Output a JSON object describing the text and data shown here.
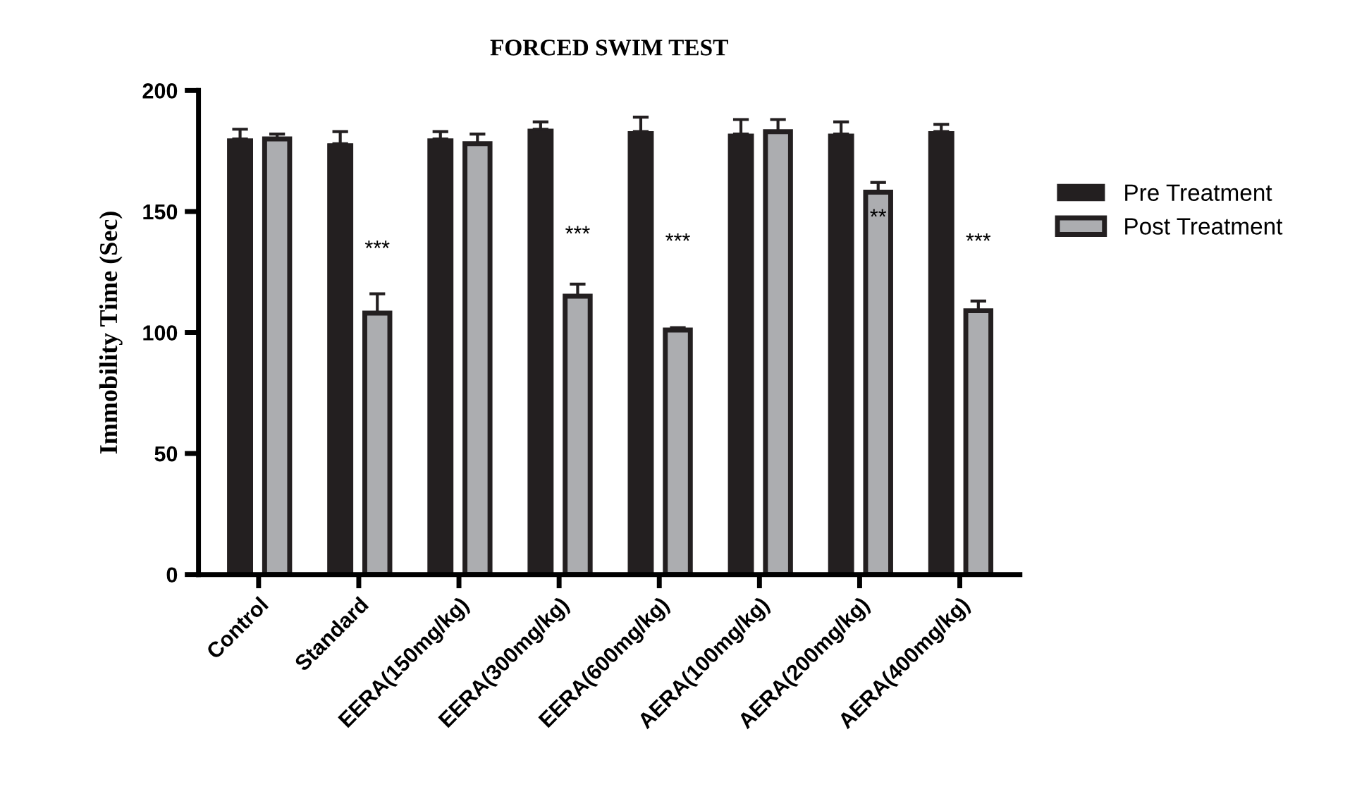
{
  "chart_data": {
    "type": "bar",
    "title": "FORCED SWIM TEST",
    "ylabel": "Immobility Time (Sec)",
    "categories": [
      "Control",
      "Standard",
      "EERA(150mg/kg)",
      "EERA(300mg/kg)",
      "EERA(600mg/kg)",
      "AERA(100mg/kg)",
      "AERA(200mg/kg)",
      "AERA(400mg/kg)"
    ],
    "series": [
      {
        "name": "Pre Treatment",
        "color": "#231f20",
        "values": [
          180,
          178,
          180,
          184,
          183,
          182,
          182,
          183
        ],
        "errors": [
          [
            180,
            184
          ],
          [
            178,
            183
          ],
          [
            180,
            183
          ],
          [
            184,
            187
          ],
          [
            183,
            189
          ],
          [
            182,
            188
          ],
          [
            182,
            187
          ],
          [
            183,
            186
          ]
        ]
      },
      {
        "name": "Post Treatment",
        "color": "#acadb0",
        "values": [
          180,
          108,
          178,
          115,
          101,
          183,
          158,
          109
        ],
        "errors": [
          [
            180,
            182
          ],
          [
            108,
            116
          ],
          [
            178,
            182
          ],
          [
            115,
            120
          ],
          [
            101,
            102
          ],
          [
            183,
            188
          ],
          [
            158,
            162
          ],
          [
            109,
            113
          ]
        ]
      }
    ],
    "annotations": [
      {
        "text": "***",
        "x": "Standard",
        "y": 130
      },
      {
        "text": "***",
        "x": "EERA(300mg/kg)",
        "y": 136
      },
      {
        "text": "***",
        "x": "EERA(600mg/kg)",
        "y": 133
      },
      {
        "text": "**",
        "x": "AERA(200mg/kg)",
        "y": 143
      },
      {
        "text": "***",
        "x": "AERA(400mg/kg)",
        "y": 133
      }
    ],
    "ylim": [
      0,
      200
    ],
    "yticks": [
      0,
      50,
      100,
      150,
      200
    ],
    "grid": false,
    "legend": "right"
  }
}
